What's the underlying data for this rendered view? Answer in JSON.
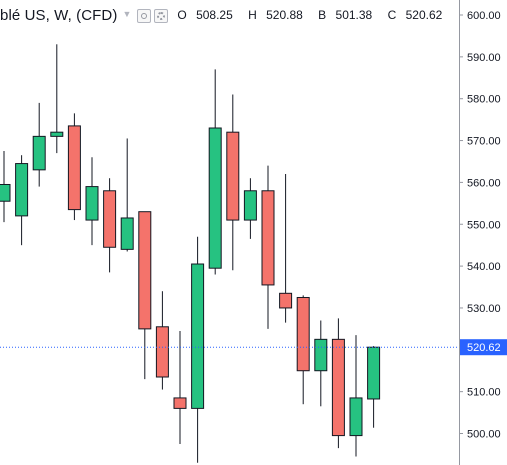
{
  "legend": {
    "symbol": "blé US, W, (CFD)",
    "open_label": "O",
    "open": "508.25",
    "high_label": "H",
    "high": "520.88",
    "low_label": "B",
    "low": "501.38",
    "close_label": "C",
    "close": "520.62"
  },
  "colors": {
    "up": "#26c281",
    "down": "#f4736b",
    "wick": "#131722",
    "axis_line": "#9598a1",
    "price_line": "#2962ff",
    "price_tag": "#2962ff"
  },
  "chart_data": {
    "type": "candlestick",
    "ylim": [
      495,
      603
    ],
    "yticks": [
      "600.00",
      "590.00",
      "580.00",
      "570.00",
      "560.00",
      "550.00",
      "540.00",
      "530.00",
      "520.00",
      "510.00",
      "500.00"
    ],
    "current_price": "520.62",
    "candles": [
      {
        "o": 555.5,
        "h": 567.5,
        "l": 550.5,
        "c": 559.5
      },
      {
        "o": 552.0,
        "h": 566.5,
        "l": 545.0,
        "c": 564.5
      },
      {
        "o": 563.0,
        "h": 579.0,
        "l": 559.0,
        "c": 571.0
      },
      {
        "o": 571.0,
        "h": 593.0,
        "l": 567.0,
        "c": 572.0
      },
      {
        "o": 573.5,
        "h": 576.5,
        "l": 551.0,
        "c": 553.5
      },
      {
        "o": 551.0,
        "h": 566.0,
        "l": 545.0,
        "c": 559.0
      },
      {
        "o": 558.0,
        "h": 561.0,
        "l": 538.5,
        "c": 544.5
      },
      {
        "o": 544.0,
        "h": 570.5,
        "l": 543.5,
        "c": 551.5
      },
      {
        "o": 553.0,
        "h": 553.0,
        "l": 513.0,
        "c": 525.0
      },
      {
        "o": 525.5,
        "h": 534.0,
        "l": 510.5,
        "c": 513.5
      },
      {
        "o": 508.5,
        "h": 524.5,
        "l": 497.5,
        "c": 506.0
      },
      {
        "o": 506.0,
        "h": 547.0,
        "l": 493.0,
        "c": 540.5
      },
      {
        "o": 539.5,
        "h": 587.0,
        "l": 538.0,
        "c": 573.0
      },
      {
        "o": 572.0,
        "h": 581.0,
        "l": 539.0,
        "c": 551.0
      },
      {
        "o": 551.0,
        "h": 561.0,
        "l": 546.5,
        "c": 558.0
      },
      {
        "o": 558.0,
        "h": 564.0,
        "l": 525.0,
        "c": 535.5
      },
      {
        "o": 533.5,
        "h": 562.0,
        "l": 526.5,
        "c": 530.0
      },
      {
        "o": 532.5,
        "h": 533.0,
        "l": 507.0,
        "c": 515.0
      },
      {
        "o": 515.0,
        "h": 527.0,
        "l": 506.5,
        "c": 522.5
      },
      {
        "o": 522.5,
        "h": 527.5,
        "l": 496.5,
        "c": 499.5
      },
      {
        "o": 499.5,
        "h": 523.5,
        "l": 494.5,
        "c": 508.5
      },
      {
        "o": 508.25,
        "h": 520.88,
        "l": 501.38,
        "c": 520.62
      }
    ]
  }
}
